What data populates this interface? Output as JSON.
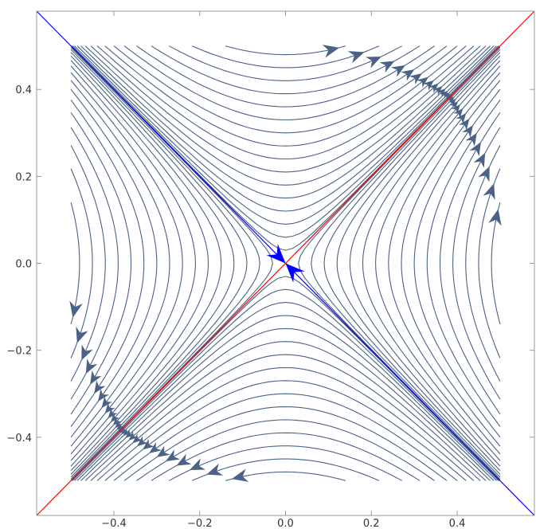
{
  "chart_data": {
    "type": "stream",
    "title": "",
    "xlabel": "",
    "ylabel": "",
    "xlim": [
      -0.58,
      0.58
    ],
    "ylim": [
      -0.58,
      0.58
    ],
    "frame": true,
    "grid": false,
    "x_ticks": [
      {
        "value": -0.4,
        "label": "-0.4"
      },
      {
        "value": -0.2,
        "label": "-0.2"
      },
      {
        "value": 0.0,
        "label": "0.0"
      },
      {
        "value": 0.2,
        "label": "0.2"
      },
      {
        "value": 0.4,
        "label": "0.4"
      }
    ],
    "y_ticks": [
      {
        "value": -0.4,
        "label": "-0.4"
      },
      {
        "value": -0.2,
        "label": "-0.2"
      },
      {
        "value": 0.0,
        "label": "0.0"
      },
      {
        "value": 0.2,
        "label": "0.2"
      },
      {
        "value": 0.4,
        "label": "0.4"
      }
    ],
    "stream_field": {
      "description_of_field": "saddle at origin; flow (x, y)' = (y, x)",
      "domain": {
        "x": [
          -0.5,
          0.5
        ],
        "y": [
          -0.5,
          0.5
        ]
      },
      "upper_curves_c": [
        0.03,
        0.06,
        0.09,
        0.12,
        0.15,
        0.18,
        0.21,
        0.24,
        0.27,
        0.3,
        0.33,
        0.36,
        0.39,
        0.42,
        0.45,
        0.48
      ],
      "side_curves_c": [
        0.03,
        0.06,
        0.09,
        0.12,
        0.15,
        0.18,
        0.21,
        0.24,
        0.27,
        0.3,
        0.33,
        0.36,
        0.39,
        0.42,
        0.45,
        0.48
      ],
      "color": "#4a6285"
    },
    "lines": [
      {
        "points": [
          [
            -0.58,
            0.58
          ],
          [
            0.58,
            -0.58
          ]
        ],
        "color": "#0000ff"
      },
      {
        "points": [
          [
            -0.58,
            -0.58
          ],
          [
            0.58,
            0.58
          ]
        ],
        "color": "#ff0000"
      }
    ],
    "highlight_arrows": [
      {
        "from": [
          -0.05,
          0.05
        ],
        "to": [
          0.0,
          0.0
        ],
        "color": "#0000ff"
      },
      {
        "from": [
          0.05,
          -0.05
        ],
        "to": [
          0.0,
          0.0
        ],
        "color": "#0000ff"
      }
    ]
  }
}
